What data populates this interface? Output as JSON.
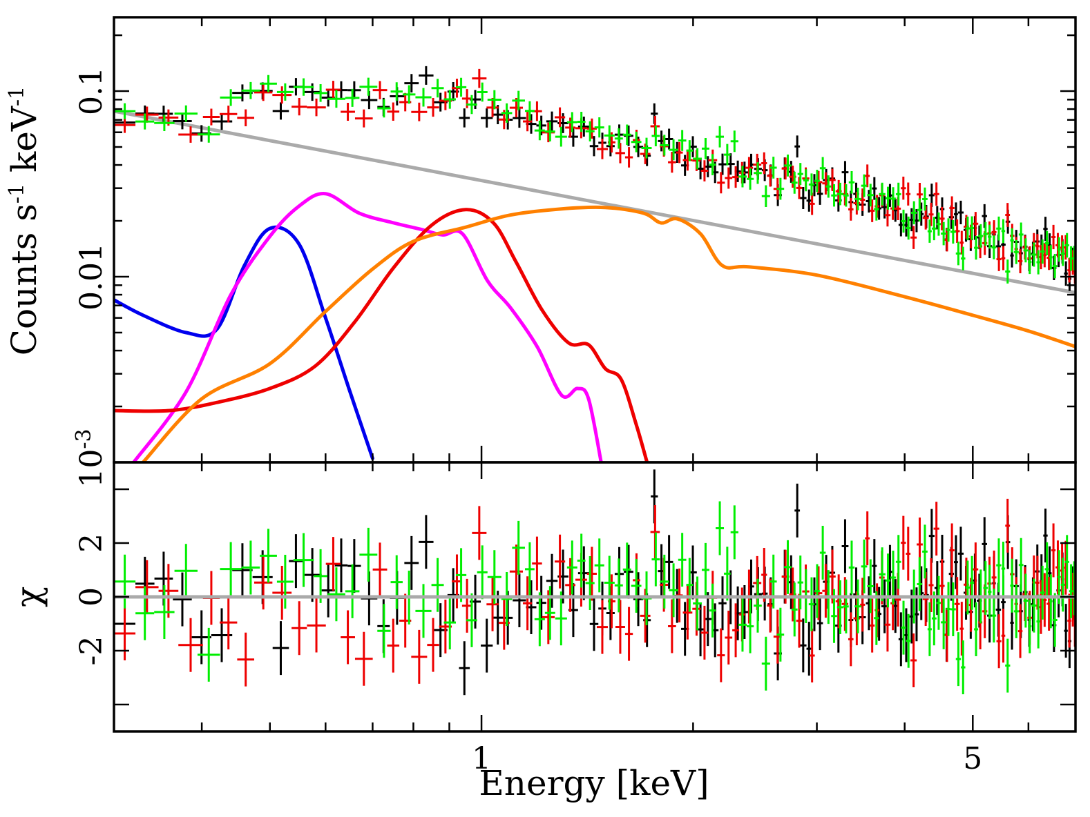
{
  "chart_data": {
    "type": "line",
    "title": "",
    "xlabel": "Energy [keV]",
    "x_scale": "log",
    "xlim": [
      0.3,
      7.0
    ],
    "x_ticks": [
      {
        "value": 1,
        "label": "1"
      },
      {
        "value": 5,
        "label": "5"
      }
    ],
    "panels": [
      {
        "name": "spectrum",
        "ylabel_parts": [
          "Counts s",
          "-1",
          " keV",
          "-1"
        ],
        "y_scale": "log",
        "ylim": [
          0.001,
          0.25
        ],
        "y_ticks": [
          {
            "value": 0.1,
            "label": "0.1",
            "base": "",
            "exp": ""
          },
          {
            "value": 0.01,
            "label": "0.01",
            "base": "",
            "exp": ""
          },
          {
            "value": 0.001,
            "label": "",
            "base": "10",
            "exp": "-3"
          }
        ],
        "models": [
          {
            "name": "power-law",
            "color": "#aaaaaa",
            "x": [
              0.3,
              7.0
            ],
            "y": [
              0.078,
              0.0082
            ]
          },
          {
            "name": "blue component",
            "color": "#0000ee",
            "x": [
              0.3,
              0.33,
              0.38,
              0.42,
              0.46,
              0.5,
              0.55,
              0.6,
              0.65,
              0.7
            ],
            "y": [
              0.0075,
              0.0062,
              0.005,
              0.0052,
              0.0115,
              0.0182,
              0.015,
              0.006,
              0.0024,
              0.00105
            ]
          },
          {
            "name": "magenta component",
            "color": "#ff00ff",
            "x": [
              0.32,
              0.38,
              0.44,
              0.5,
              0.55,
              0.6,
              0.67,
              0.75,
              0.82,
              0.88,
              0.94,
              1.02,
              1.1,
              1.2,
              1.3,
              1.37,
              1.42,
              1.48
            ],
            "y": [
              0.001,
              0.0024,
              0.008,
              0.0165,
              0.024,
              0.028,
              0.022,
              0.0195,
              0.018,
              0.0168,
              0.017,
              0.0095,
              0.0068,
              0.0042,
              0.0023,
              0.0025,
              0.0022,
              0.001
            ]
          },
          {
            "name": "red component",
            "color": "#ee0000",
            "x": [
              0.3,
              0.36,
              0.42,
              0.5,
              0.58,
              0.66,
              0.75,
              0.85,
              0.95,
              1.04,
              1.12,
              1.22,
              1.33,
              1.42,
              1.5,
              1.58,
              1.66,
              1.72
            ],
            "y": [
              0.0019,
              0.0019,
              0.0021,
              0.0025,
              0.0033,
              0.0057,
              0.0112,
              0.019,
              0.023,
              0.0195,
              0.012,
              0.0066,
              0.0044,
              0.0043,
              0.0032,
              0.0028,
              0.0016,
              0.001
            ]
          },
          {
            "name": "orange component",
            "color": "#ff8000",
            "x": [
              0.33,
              0.4,
              0.5,
              0.6,
              0.7,
              0.8,
              0.95,
              1.1,
              1.3,
              1.5,
              1.7,
              1.8,
              1.9,
              2.05,
              2.2,
              2.4,
              3.0,
              4.0,
              5.0,
              6.0,
              7.0
            ],
            "y": [
              0.001,
              0.0022,
              0.0034,
              0.0065,
              0.011,
              0.0155,
              0.0185,
              0.0215,
              0.0232,
              0.0236,
              0.022,
              0.0195,
              0.0205,
              0.017,
              0.0115,
              0.0113,
              0.0102,
              0.0078,
              0.0062,
              0.0051,
              0.0042
            ]
          }
        ]
      },
      {
        "name": "residuals",
        "ylabel": "χ",
        "y_scale": "linear",
        "ylim": [
          -5,
          5
        ],
        "y_ticks": [
          {
            "value": 4,
            "label": ""
          },
          {
            "value": 2,
            "label": "2"
          },
          {
            "value": 0,
            "label": "0"
          },
          {
            "value": -2,
            "label": "-2"
          },
          {
            "value": -4,
            "label": ""
          }
        ],
        "reference_line": {
          "value": 0,
          "color": "#aaaaaa"
        }
      }
    ],
    "datasets": [
      {
        "name": "black dataset",
        "color": "#000000",
        "seed": 11
      },
      {
        "name": "red dataset",
        "color": "#ee0000",
        "seed": 23
      },
      {
        "name": "green dataset",
        "color": "#00ee00",
        "seed": 37
      }
    ],
    "data_trend": {
      "description": "Data points track the sum of model components: ~0.075 at 0.3 keV, broad bump ~0.1 around 0.5-1.0 keV, then declining to ~0.012 at 7 keV",
      "x": [
        0.3,
        0.4,
        0.45,
        0.5,
        0.6,
        0.7,
        0.8,
        0.9,
        1.0,
        1.1,
        1.3,
        1.6,
        2.0,
        3.0,
        4.0,
        5.0,
        6.0,
        7.0
      ],
      "y": [
        0.075,
        0.068,
        0.088,
        0.095,
        0.09,
        0.09,
        0.097,
        0.1,
        0.09,
        0.075,
        0.062,
        0.052,
        0.045,
        0.032,
        0.023,
        0.017,
        0.014,
        0.012
      ]
    }
  }
}
